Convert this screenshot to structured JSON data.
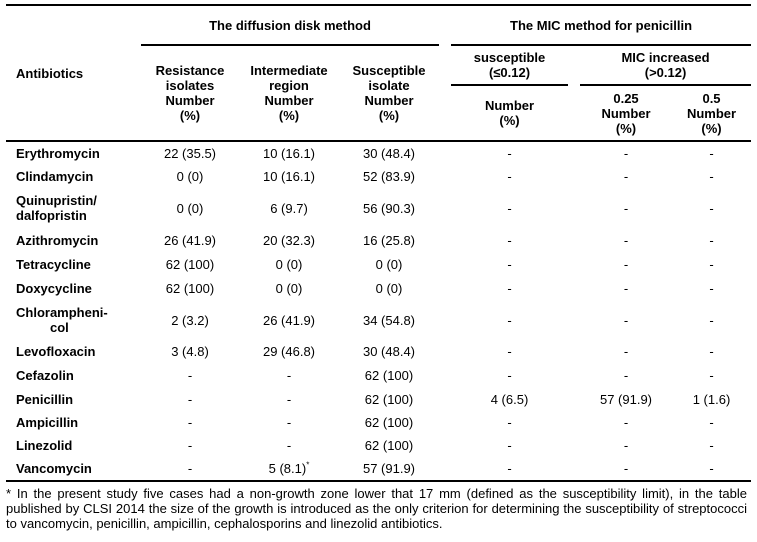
{
  "headers": {
    "antibiotics": "Antibiotics",
    "disk_group": "The diffusion disk method",
    "mic_group": "The MIC method for penicillin",
    "resistance": [
      "Resistance",
      "isolates",
      "Number",
      "(%)"
    ],
    "intermediate": [
      "Intermediate",
      "region",
      "Number",
      "(%)"
    ],
    "susceptible": [
      "Susceptible",
      "isolate",
      "Number",
      "(%)"
    ],
    "mic_susceptible": [
      "susceptible",
      "(≤0.12)"
    ],
    "mic_increased": [
      "MIC increased",
      "(>0.12)"
    ],
    "mic_number": [
      "Number",
      "(%)"
    ],
    "mic_025": [
      "0.25",
      "Number",
      "(%)"
    ],
    "mic_05": [
      "0.5",
      "Number",
      "(%)"
    ]
  },
  "rows": [
    {
      "name": "Erythromycin",
      "resistance": "22 (35.5)",
      "intermediate": "10 (16.1)",
      "susceptible": "30 (48.4)",
      "mic_s": "-",
      "mic_025": "-",
      "mic_05": "-"
    },
    {
      "name": "Clindamycin",
      "resistance": "0 (0)",
      "intermediate": "10 (16.1)",
      "susceptible": "52 (83.9)",
      "mic_s": "-",
      "mic_025": "-",
      "mic_05": "-"
    },
    {
      "name_lines": [
        "Quinupristin/",
        "dalfopristin"
      ],
      "resistance": "0 (0)",
      "intermediate": "6 (9.7)",
      "susceptible": "56 (90.3)",
      "mic_s": "-",
      "mic_025": "-",
      "mic_05": "-"
    },
    {
      "name": "Azithromycin",
      "resistance": "26 (41.9)",
      "intermediate": "20 (32.3)",
      "susceptible": "16 (25.8)",
      "mic_s": "-",
      "mic_025": "-",
      "mic_05": "-"
    },
    {
      "name": "Tetracycline",
      "resistance": "62 (100)",
      "intermediate": "0 (0)",
      "susceptible": "0 (0)",
      "mic_s": "-",
      "mic_025": "-",
      "mic_05": "-"
    },
    {
      "name": "Doxycycline",
      "resistance": "62 (100)",
      "intermediate": "0 (0)",
      "susceptible": "0 (0)",
      "mic_s": "-",
      "mic_025": "-",
      "mic_05": "-"
    },
    {
      "name_lines": [
        "Chlorampheni-",
        "col"
      ],
      "resistance": "2 (3.2)",
      "intermediate": "26 (41.9)",
      "susceptible": "34 (54.8)",
      "mic_s": "-",
      "mic_025": "-",
      "mic_05": "-"
    },
    {
      "name": "Levofloxacin",
      "resistance": "3 (4.8)",
      "intermediate": "29 (46.8)",
      "susceptible": "30 (48.4)",
      "mic_s": "-",
      "mic_025": "-",
      "mic_05": "-"
    },
    {
      "name": "Cefazolin",
      "resistance": "-",
      "intermediate": "-",
      "susceptible": "62 (100)",
      "mic_s": "-",
      "mic_025": "-",
      "mic_05": "-"
    },
    {
      "name": "Penicillin",
      "resistance": "-",
      "intermediate": "-",
      "susceptible": "62 (100)",
      "mic_s": "4 (6.5)",
      "mic_025": "57 (91.9)",
      "mic_05": "1 (1.6)"
    },
    {
      "name": "Ampicillin",
      "resistance": "-",
      "intermediate": "-",
      "susceptible": "62 (100)",
      "mic_s": "-",
      "mic_025": "-",
      "mic_05": "-"
    },
    {
      "name": "Linezolid",
      "resistance": "-",
      "intermediate": "-",
      "susceptible": "62 (100)",
      "mic_s": "-",
      "mic_025": "-",
      "mic_05": "-"
    },
    {
      "name": "Vancomycin",
      "resistance": "-",
      "intermediate": "5 (8.1)",
      "intermediate_sup": "*",
      "susceptible": "57 (91.9)",
      "mic_s": "-",
      "mic_025": "-",
      "mic_05": "-"
    }
  ],
  "footnote": {
    "marker": "*",
    "text": " In the present study five cases had a non-growth zone lower that 17 mm (defined as the susceptibility limit), in the table published by CLSI 2014 the size of the growth is introduced as the only criterion for determining the susceptibility of streptococci to vancomycin, penicillin, ampicillin, cephalosporins and linezolid antibiotics."
  }
}
